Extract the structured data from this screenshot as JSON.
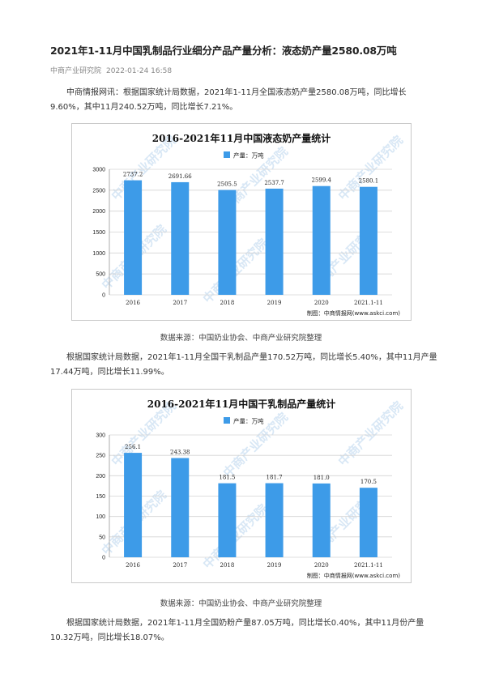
{
  "article": {
    "title": "2021年1-11月中国乳制品行业细分产品产量分析：液态奶产量2580.08万吨",
    "source_name": "中商产业研究院",
    "date": "2022-01-24 16:58",
    "paragraphs": [
      "中商情报网讯：根据国家统计局数据，2021年1-11月全国液态奶产量2580.08万吨，同比增长9.60%，其中11月240.52万吨，同比增长7.21%。",
      "根据国家统计局数据，2021年1-11月全国干乳制品产量170.52万吨，同比增长5.40%，其中11月产量17.44万吨，同比增长11.99%。",
      "根据国家统计局数据，2021年1-11月全国奶粉产量87.05万吨，同比增长0.40%，其中11月份产量10.32万吨，同比增长18.07%。"
    ],
    "chart_sources": [
      "数据来源：中国奶业协会、中商产业研究院整理",
      "数据来源：中国奶业协会、中商产业研究院整理"
    ]
  },
  "colors": {
    "bar": "#3d9be8",
    "grid": "#d4d4d4",
    "watermark": "#a9cbea"
  },
  "watermark_text": "中商产业研究院",
  "chart_data": [
    {
      "type": "bar",
      "title": "2016-2021年11月中国液态奶产量统计",
      "legend": "产量：万吨",
      "legend_position": "top-center",
      "categories": [
        "2016",
        "2017",
        "2018",
        "2019",
        "2020",
        "2021.1-11"
      ],
      "series": [
        {
          "name": "产量：万吨",
          "values": [
            2737.2,
            2691.66,
            2505.5,
            2537.7,
            2599.4,
            2580.1
          ]
        }
      ],
      "data_labels": [
        "2737.2",
        "2691.66",
        "2505.5",
        "2537.7",
        "2599.4",
        "2580.1"
      ],
      "yticks": [
        "0",
        "500",
        "1000",
        "1500",
        "2000",
        "2500",
        "3000"
      ],
      "ylim": [
        0,
        3000
      ],
      "grid": true,
      "credit": "制图：中商情报网(www.askci.com)"
    },
    {
      "type": "bar",
      "title": "2016-2021年11月中国干乳制品产量统计",
      "legend": "产量：万吨",
      "legend_position": "top-center",
      "categories": [
        "2016",
        "2017",
        "2018",
        "2019",
        "2020",
        "2021.1-11"
      ],
      "series": [
        {
          "name": "产量：万吨",
          "values": [
            256.1,
            243.38,
            181.5,
            181.7,
            181.0,
            170.5
          ]
        }
      ],
      "data_labels": [
        "256.1",
        "243.38",
        "181.5",
        "181.7",
        "181.0",
        "170.5"
      ],
      "yticks": [
        "0",
        "50",
        "100",
        "150",
        "200",
        "250",
        "300"
      ],
      "ylim": [
        0,
        300
      ],
      "grid": true,
      "credit": "制图：中商情报网(www.askci.com)"
    }
  ]
}
